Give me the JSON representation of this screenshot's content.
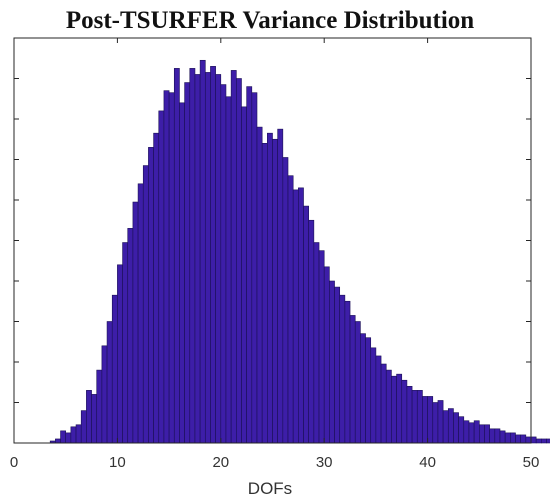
{
  "chart_data": {
    "type": "bar",
    "title": "Post-TSURFER Variance Distribution",
    "xlabel": "DOFs",
    "ylabel": "",
    "xlim": [
      0,
      50
    ],
    "ylim": [
      0,
      100
    ],
    "xticks": [
      0,
      10,
      20,
      30,
      40,
      50
    ],
    "x_tick_labels": [
      "0",
      "10",
      "20",
      "30",
      "40",
      "50"
    ],
    "y_ticks_unlabeled": [
      10,
      20,
      30,
      40,
      50,
      60,
      70,
      80,
      90
    ],
    "grid": false,
    "bin_width": 0.5,
    "bin_start": 3.5,
    "values": [
      0.5,
      1,
      3,
      2.5,
      4,
      4.5,
      8,
      13,
      12,
      18,
      24,
      30,
      36.5,
      44,
      49.5,
      53,
      59.5,
      64,
      68.5,
      73,
      76.5,
      82,
      87,
      86.5,
      92.5,
      84,
      89,
      92.5,
      91,
      94.5,
      91.5,
      93,
      91,
      88.5,
      85.5,
      92,
      90,
      83,
      88,
      86.5,
      78,
      74,
      76.5,
      75,
      77.5,
      70.5,
      66,
      62.5,
      63,
      58.5,
      55,
      49.5,
      47.5,
      43.5,
      40,
      38.5,
      36.5,
      35,
      31.5,
      30,
      27,
      26,
      23.5,
      21.5,
      19.5,
      18,
      16.5,
      17,
      15.5,
      14,
      13,
      13,
      11.5,
      11.5,
      10,
      10.5,
      8,
      8.5,
      7.5,
      6.5,
      5.5,
      5,
      5.5,
      4.5,
      4.5,
      3.5,
      3.5,
      3,
      2.5,
      2.5,
      2,
      2,
      1.5,
      1.5,
      1,
      1,
      1,
      0.5,
      0.5,
      0.5,
      0.5
    ],
    "colors": {
      "bar_fill": "#3d1ea8",
      "bar_edge": "#1a0f55",
      "axes": "#262626",
      "tick_text": "#333333"
    }
  }
}
